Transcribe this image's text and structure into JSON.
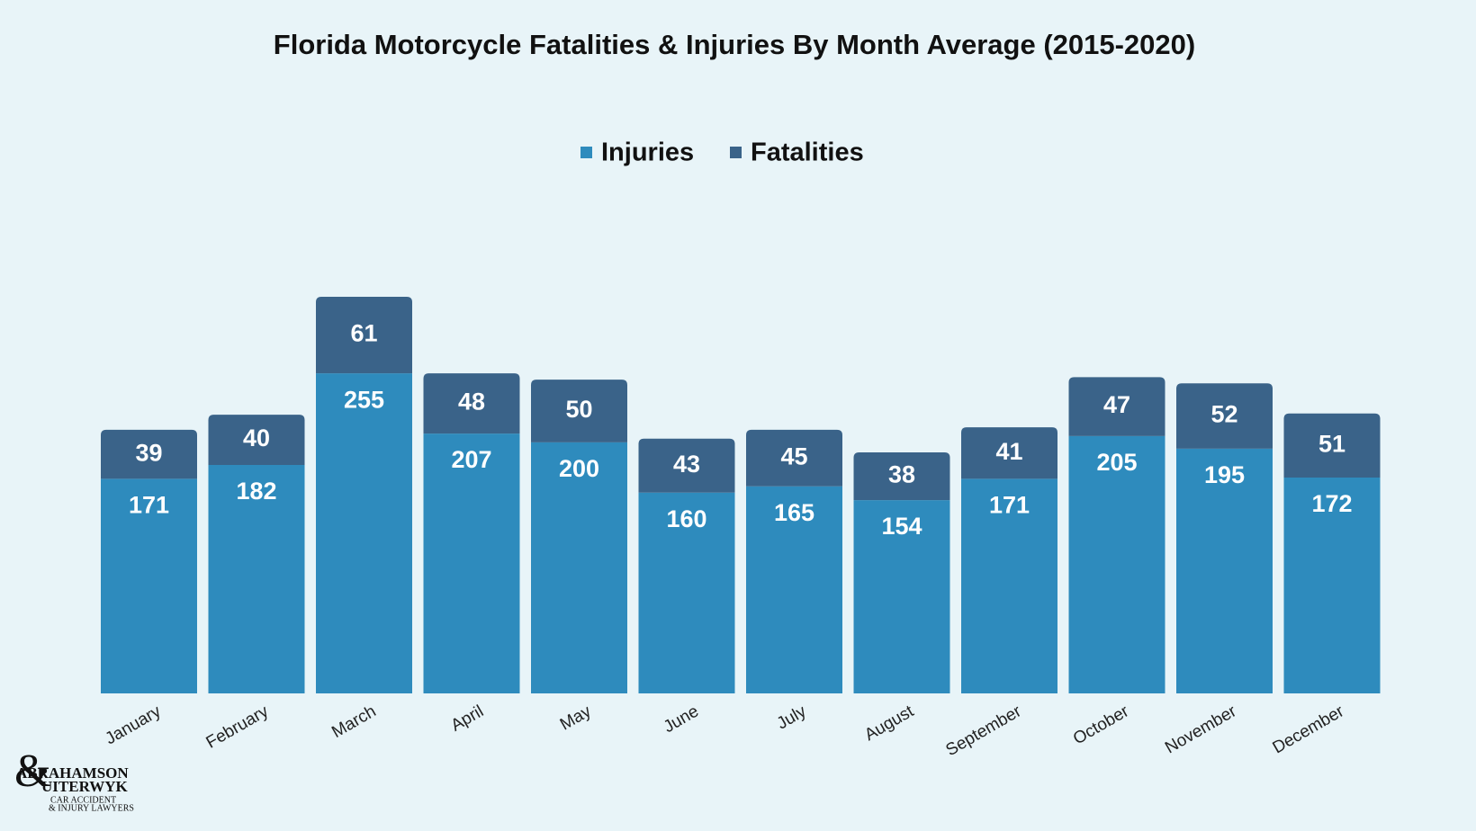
{
  "chart_data": {
    "type": "stacked-bar",
    "title": "Florida Motorcycle Fatalities & Injuries By Month Average (2015-2020)",
    "categories": [
      "January",
      "February",
      "March",
      "April",
      "May",
      "June",
      "July",
      "August",
      "September",
      "October",
      "November",
      "December"
    ],
    "series": [
      {
        "name": "Injuries",
        "color": "#2e8bbd",
        "values": [
          171,
          182,
          255,
          207,
          200,
          160,
          165,
          154,
          171,
          205,
          195,
          172
        ]
      },
      {
        "name": "Fatalities",
        "color": "#3a6389",
        "values": [
          39,
          40,
          61,
          48,
          50,
          43,
          45,
          38,
          41,
          47,
          52,
          51
        ]
      }
    ],
    "legend": "top"
  },
  "logo": {
    "line1": "ABRAHAMSON",
    "ampersand": "&",
    "line2": "UITERWYK",
    "line3": "CAR ACCIDENT",
    "line4": "& INJURY LAWYERS"
  }
}
